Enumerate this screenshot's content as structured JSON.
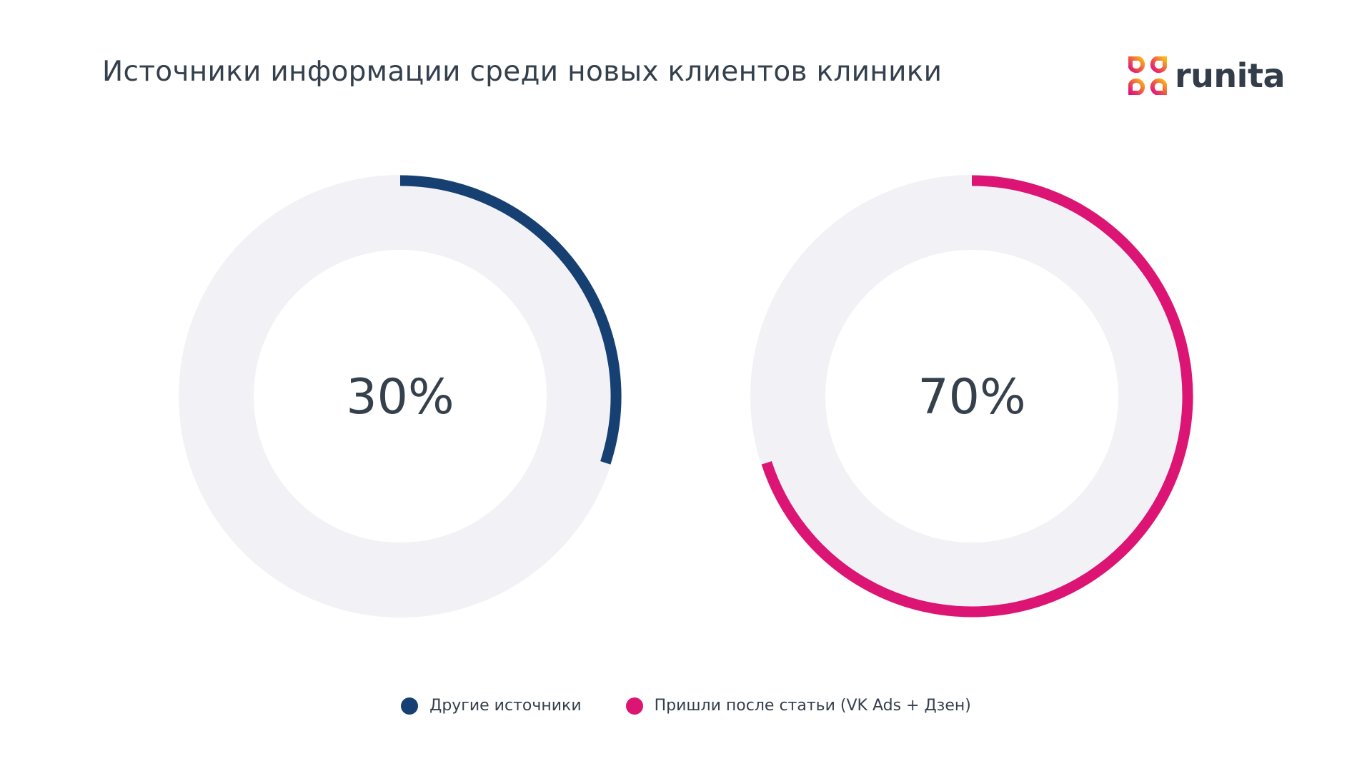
{
  "title": "Источники информации среди новых клиентов клиники",
  "logo": {
    "text": "runita"
  },
  "colors": {
    "track": "#f2f2f6",
    "series_a": "#163f72",
    "series_b": "#dc1574",
    "text": "#35404d"
  },
  "chart_data": [
    {
      "type": "donut",
      "value": 30,
      "label": "30%",
      "series": "Другие источники",
      "color": "#163f72"
    },
    {
      "type": "donut",
      "value": 70,
      "label": "70%",
      "series": "Пришли после статьи (VK Ads + Дзен)",
      "color": "#dc1574"
    }
  ],
  "legend": [
    {
      "label": "Другие источники",
      "color": "#163f72"
    },
    {
      "label": "Пришли после статьи (VK Ads + Дзен)",
      "color": "#dc1574"
    }
  ]
}
